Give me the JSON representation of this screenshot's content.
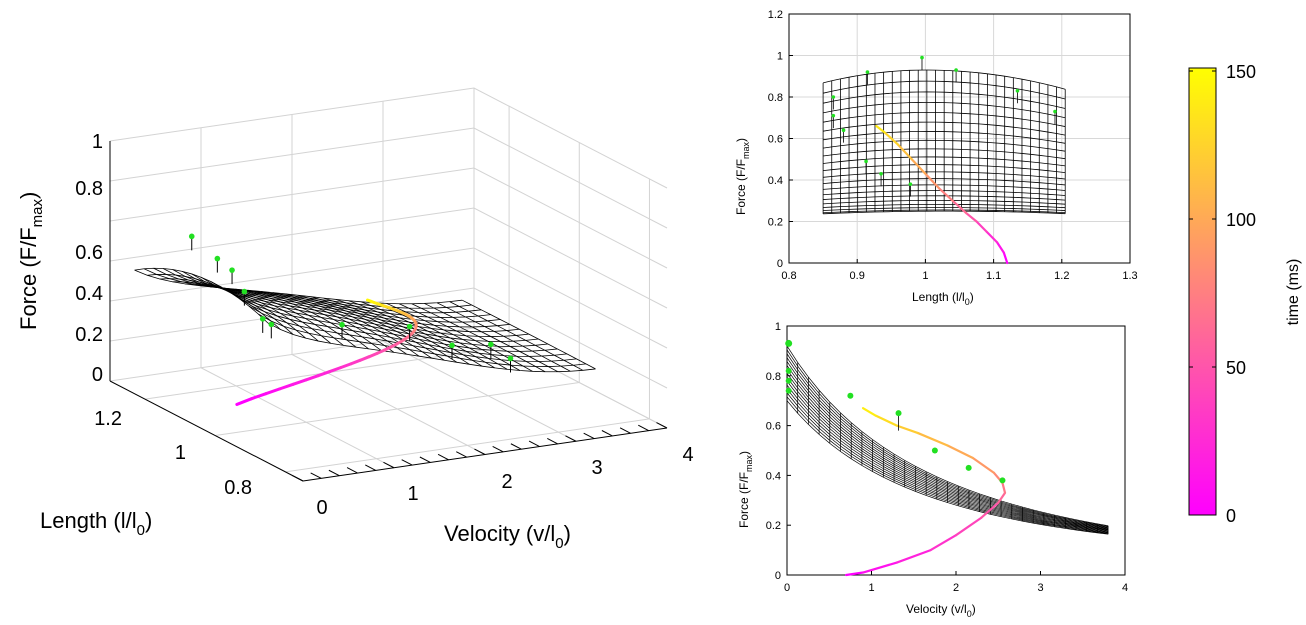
{
  "chart_data": [
    {
      "panel": "3d-surface",
      "type": "surface3d",
      "xlabel": "Velocity (v/l",
      "xlabel_sub": "0",
      "xlabel_tail": ")",
      "ylabel": "Length (l/l",
      "ylabel_sub": "0",
      "ylabel_tail": ")",
      "zlabel": "Force (F/F",
      "zlabel_sub": "max",
      "zlabel_tail": ")",
      "x_ticks": [
        "0",
        "1",
        "2",
        "3",
        "4"
      ],
      "y_ticks": [
        "0.8",
        "1",
        "1.2"
      ],
      "z_ticks": [
        "0",
        "0.2",
        "0.4",
        "0.6",
        "0.8",
        "1"
      ],
      "xlim": [
        0,
        4
      ],
      "ylim": [
        0.75,
        1.3
      ],
      "zlim": [
        0,
        1.2
      ],
      "grid": true
    },
    {
      "panel": "force-length",
      "type": "line",
      "xlabel": "Length (l/l",
      "xlabel_sub": "0",
      "xlabel_tail": ")",
      "ylabel": "Force (F/F",
      "ylabel_sub": "max",
      "ylabel_tail": ")",
      "x_ticks": [
        "0.8",
        "0.9",
        "1",
        "1.1",
        "1.2",
        "1.3"
      ],
      "y_ticks": [
        "0",
        "0.2",
        "0.4",
        "0.6",
        "0.8",
        "1",
        "1.2"
      ],
      "xlim": [
        0.8,
        1.3
      ],
      "ylim": [
        0,
        1.2
      ],
      "grid": true,
      "trajectory": [
        [
          1.12,
          0.0
        ],
        [
          1.115,
          0.05
        ],
        [
          1.105,
          0.1
        ],
        [
          1.09,
          0.15
        ],
        [
          1.075,
          0.2
        ],
        [
          1.06,
          0.24
        ],
        [
          1.04,
          0.3
        ],
        [
          1.02,
          0.36
        ],
        [
          1.0,
          0.43
        ],
        [
          0.98,
          0.5
        ],
        [
          0.96,
          0.57
        ],
        [
          0.94,
          0.63
        ],
        [
          0.928,
          0.66
        ]
      ],
      "markers": [
        [
          0.865,
          0.8
        ],
        [
          0.865,
          0.71
        ],
        [
          0.88,
          0.64
        ],
        [
          0.915,
          0.92
        ],
        [
          0.995,
          0.99
        ],
        [
          1.045,
          0.93
        ],
        [
          1.135,
          0.83
        ],
        [
          1.19,
          0.73
        ],
        [
          0.913,
          0.49
        ],
        [
          0.935,
          0.43
        ],
        [
          0.978,
          0.38
        ]
      ]
    },
    {
      "panel": "force-velocity",
      "type": "line",
      "xlabel": "Velocity (v/l",
      "xlabel_sub": "0",
      "xlabel_tail": ")",
      "ylabel": "Force (F/F",
      "ylabel_sub": "max",
      "ylabel_tail": ")",
      "x_ticks": [
        "0",
        "1",
        "2",
        "3",
        "4"
      ],
      "y_ticks": [
        "0",
        "0.2",
        "0.4",
        "0.6",
        "0.8",
        "1"
      ],
      "xlim": [
        0,
        4
      ],
      "ylim": [
        0,
        1
      ],
      "grid": false,
      "trajectory": [
        [
          0.7,
          0.0
        ],
        [
          0.9,
          0.01
        ],
        [
          1.3,
          0.05
        ],
        [
          1.7,
          0.1
        ],
        [
          2.0,
          0.16
        ],
        [
          2.3,
          0.23
        ],
        [
          2.5,
          0.29
        ],
        [
          2.58,
          0.33
        ],
        [
          2.55,
          0.37
        ],
        [
          2.45,
          0.41
        ],
        [
          2.2,
          0.47
        ],
        [
          1.9,
          0.52
        ],
        [
          1.55,
          0.57
        ],
        [
          1.3,
          0.6
        ],
        [
          1.05,
          0.64
        ],
        [
          0.9,
          0.67
        ]
      ],
      "markers": [
        [
          0.02,
          0.93
        ],
        [
          0.02,
          0.82
        ],
        [
          0.02,
          0.78
        ],
        [
          0.02,
          0.74
        ],
        [
          0.75,
          0.72
        ],
        [
          1.32,
          0.65
        ],
        [
          1.75,
          0.5
        ],
        [
          2.15,
          0.43
        ],
        [
          2.55,
          0.38
        ]
      ]
    }
  ],
  "colorbar": {
    "label": "time (ms)",
    "ticks": [
      "0",
      "50",
      "100",
      "150"
    ],
    "range": [
      0,
      150
    ],
    "color_low": "#ff00ff",
    "color_mid": "#ff8080",
    "color_high": "#ffff00"
  },
  "colors": {
    "mesh": "#000000",
    "grid": "#d0d0d0",
    "marker": "#22e022"
  }
}
